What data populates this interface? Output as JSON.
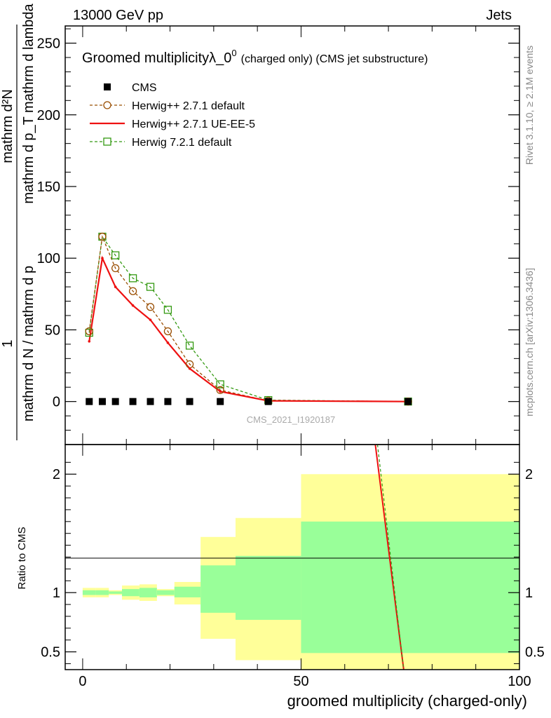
{
  "header": {
    "energy_label": "13000 GeV pp",
    "category_label": "Jets"
  },
  "side_labels": {
    "rivet": "Rivet 3.1.10, ≥ 2.1M events",
    "mcplots": "mcplots.cern.ch [arXiv:1306.3436]"
  },
  "chart_data": [
    {
      "type": "line",
      "panel": "main",
      "title": "Groomed multiplicityλ_0",
      "title_sup": "0",
      "title_suffix": "(charged only) (CMS jet substructure)",
      "watermark": "CMS_2021_I1920187",
      "ylabel_numerator": "1",
      "ylabel_denominator": "mathrm d N / mathrm d p",
      "ylabel_top": "mathrm d²N",
      "ylabel_mid": "mathrm d p_T mathrm d lambda",
      "xlim": [
        -4,
        100
      ],
      "ylim": [
        -30,
        262
      ],
      "y_ticks": [
        "0",
        "50",
        "100",
        "150",
        "200",
        "250"
      ],
      "x_ticks": [
        "0",
        "50",
        "100"
      ],
      "legend_placement": "top-left",
      "legend": [
        {
          "label": "CMS",
          "color": "#000000",
          "marker": "square"
        },
        {
          "label": "Herwig++ 2.7.1 default",
          "color": "#994d00",
          "marker": "circle",
          "dash": true
        },
        {
          "label": "Herwig++ 2.7.1 UE-EE-5",
          "color": "#ee1111",
          "marker": "none",
          "dash": false
        },
        {
          "label": "Herwig 7.2.1 default",
          "color": "#339911",
          "marker": "open-square",
          "dash": true
        }
      ],
      "series": [
        {
          "name": "CMS",
          "color": "#000000",
          "x": [
            1.5,
            4.5,
            7.5,
            11.5,
            15.5,
            19.5,
            24.5,
            31.5,
            42.5,
            74.5
          ],
          "y": [
            0,
            0,
            0,
            0,
            0,
            0,
            0,
            0,
            0,
            0
          ]
        },
        {
          "name": "Herwig++ 2.7.1 default",
          "color": "#994d00",
          "x": [
            1.5,
            4.5,
            7.5,
            11.5,
            15.5,
            19.5,
            24.5,
            31.5,
            42.5,
            74.5
          ],
          "y": [
            49,
            115,
            93,
            77,
            66,
            49,
            26,
            8,
            0.5,
            0
          ]
        },
        {
          "name": "Herwig++ 2.7.1 UE-EE-5",
          "color": "#ee1111",
          "x": [
            1.5,
            4.5,
            7.5,
            11.5,
            15.5,
            19.5,
            24.5,
            31.5,
            42.5,
            74.5
          ],
          "y": [
            42,
            100,
            80,
            67,
            57,
            41,
            23,
            7,
            0.5,
            0
          ]
        },
        {
          "name": "Herwig 7.2.1 default",
          "color": "#339911",
          "x": [
            1.5,
            4.5,
            7.5,
            11.5,
            15.5,
            19.5,
            24.5,
            31.5,
            42.5,
            74.5
          ],
          "y": [
            48,
            115,
            102,
            86,
            80,
            64,
            39,
            12,
            1,
            0
          ]
        }
      ]
    },
    {
      "type": "area",
      "panel": "ratio",
      "ylabel": "Ratio to CMS",
      "xlabel": "groomed multiplicity (charged-only)",
      "xlim": [
        -4,
        100
      ],
      "ylim": [
        0.35,
        2.25
      ],
      "y_ticks": [
        "0.5",
        "1",
        "2"
      ],
      "x_ticks": [
        "0",
        "50",
        "100"
      ],
      "bins": [
        {
          "lo": 0,
          "hi": 3,
          "stat_lo": 0.98,
          "stat_hi": 1.02,
          "tot_lo": 0.96,
          "tot_hi": 1.04
        },
        {
          "lo": 3,
          "hi": 6,
          "stat_lo": 0.98,
          "stat_hi": 1.02,
          "tot_lo": 0.96,
          "tot_hi": 1.04
        },
        {
          "lo": 6,
          "hi": 9,
          "stat_lo": 0.99,
          "stat_hi": 1.01,
          "tot_lo": 0.98,
          "tot_hi": 1.02
        },
        {
          "lo": 9,
          "hi": 13,
          "stat_lo": 0.97,
          "stat_hi": 1.03,
          "tot_lo": 0.94,
          "tot_hi": 1.06
        },
        {
          "lo": 13,
          "hi": 17,
          "stat_lo": 0.96,
          "stat_hi": 1.04,
          "tot_lo": 0.93,
          "tot_hi": 1.07
        },
        {
          "lo": 17,
          "hi": 21,
          "stat_lo": 0.98,
          "stat_hi": 1.02,
          "tot_lo": 0.97,
          "tot_hi": 1.03
        },
        {
          "lo": 21,
          "hi": 27,
          "stat_lo": 0.96,
          "stat_hi": 1.05,
          "tot_lo": 0.9,
          "tot_hi": 1.09
        },
        {
          "lo": 27,
          "hi": 35,
          "stat_lo": 0.83,
          "stat_hi": 1.23,
          "tot_lo": 0.61,
          "tot_hi": 1.47
        },
        {
          "lo": 35,
          "hi": 50,
          "stat_lo": 0.77,
          "stat_hi": 1.31,
          "tot_lo": 0.43,
          "tot_hi": 1.63
        },
        {
          "lo": 50,
          "hi": 100,
          "stat_lo": 0.49,
          "stat_hi": 1.6,
          "tot_lo": 0.35,
          "tot_hi": 2.0
        }
      ],
      "ratio_lines": [
        {
          "name": "Herwig++ 2.7.1 UE-EE-5",
          "color": "#ee1111",
          "x": [
            67,
            73.5
          ],
          "y": [
            2.25,
            0.35
          ]
        },
        {
          "name": "Herwig 7.2.1 default",
          "color": "#339911",
          "x": [
            67.5,
            73.5
          ],
          "y": [
            2.25,
            0.35
          ],
          "dash": true
        }
      ]
    }
  ]
}
